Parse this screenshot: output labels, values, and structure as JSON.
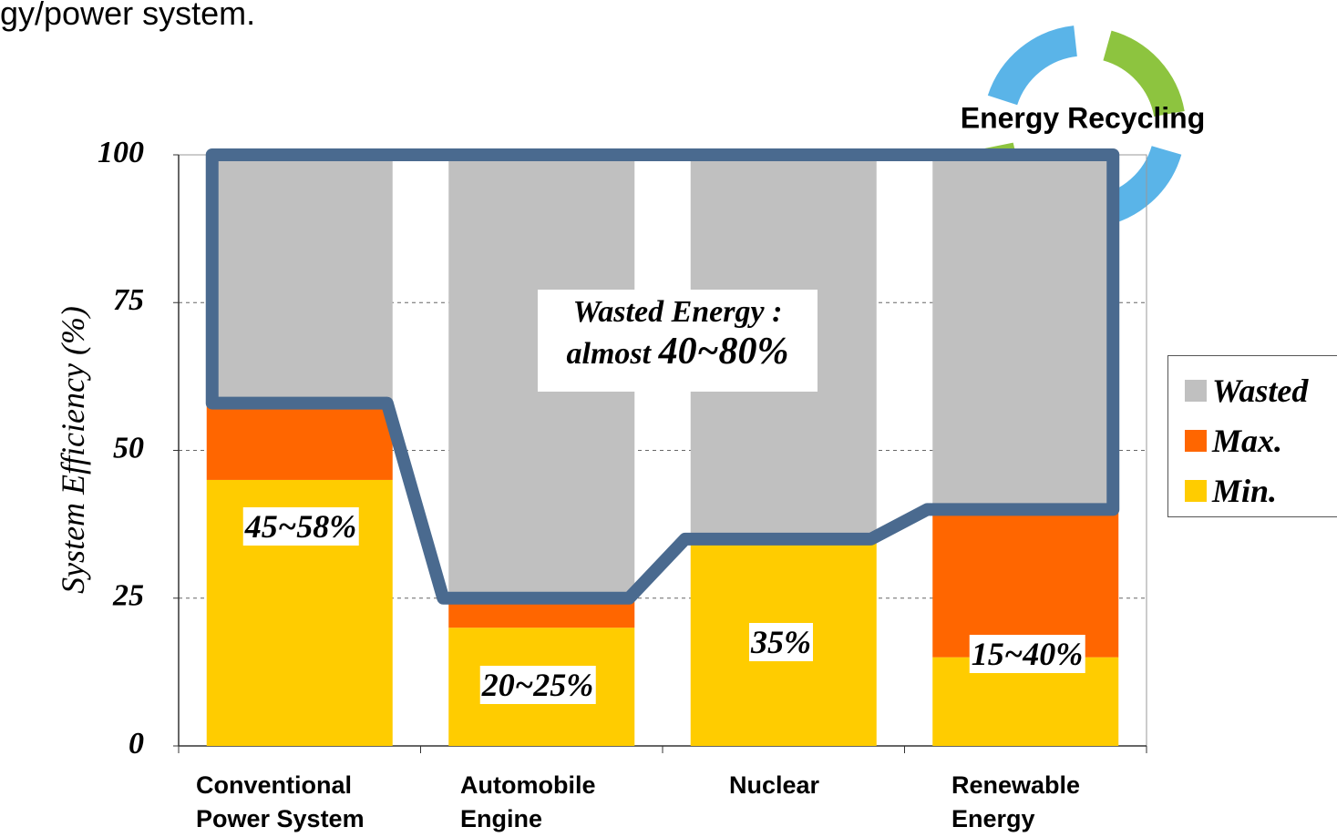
{
  "caption": "gy/power system.",
  "chart_data": {
    "type": "stacked_bar",
    "y_label": "System Efficiency (%)",
    "categories": [
      "Conventional Power System",
      "Automobile Engine",
      "Nuclear",
      "Renewable Energy"
    ],
    "series": [
      {
        "name": "Min.",
        "color": "#ffcc00",
        "values": [
          45,
          20,
          35,
          15
        ]
      },
      {
        "name": "Max.",
        "color": "#ff6600",
        "values": [
          13,
          5,
          0,
          25
        ]
      },
      {
        "name": "Wasted",
        "color": "#c0c0c0",
        "values": [
          42,
          75,
          65,
          60
        ]
      }
    ],
    "range_labels": [
      "45~58%",
      "20~25%",
      "35%",
      "15~40%"
    ],
    "ylim": [
      0,
      100
    ],
    "yticks": [
      0,
      25,
      50,
      75,
      100
    ],
    "grid": true,
    "legend": "right",
    "wasted_note": {
      "line1": "Wasted Energy :",
      "prefix": "almost",
      "emph": "40~80%"
    },
    "badge": "Energy Recycling"
  }
}
